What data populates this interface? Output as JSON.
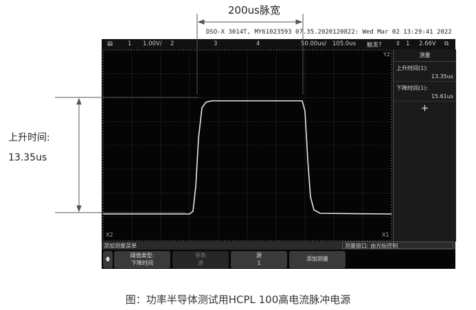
{
  "annotation": {
    "pulse_width": "200us脉宽",
    "rise_label": "上升时间:",
    "rise_value": "13.35us"
  },
  "caption": "图：功率半导体测试用HCPL 100高电流脉冲电源",
  "scope": {
    "header": "DSO-X 3014T, MY61023593  07.35.2020120822: Wed Mar 02 13:29:41 2022",
    "topbar": {
      "ch1": "1",
      "ch1_scale": "1.00V/",
      "ch2": "2",
      "ch3": "3",
      "ch4": "4",
      "timebase": "50.00us/",
      "delay": "105.0us",
      "trigger": "触发?",
      "trig_src": "1",
      "trig_level": "2.66V"
    },
    "panel": {
      "title": "测量",
      "rise_label": "上升时间(1):",
      "rise_value": "13.35us",
      "fall_label": "下降时间(1):",
      "fall_value": "15.61us",
      "add": "+"
    },
    "markers": {
      "x1": "X1",
      "x2": "X2",
      "y2": "Y2"
    },
    "menu": {
      "title": "添加测量菜单",
      "window": "测量窗口: 由光标控制"
    },
    "buttons": [
      {
        "line1": "阈值类型:",
        "line2": "下降时间"
      },
      {
        "line1": "参数",
        "line2": "源"
      },
      {
        "line1": "源",
        "line2": "1"
      },
      {
        "line1": "添加测量",
        "line2": ""
      }
    ]
  },
  "colors": {
    "trace": "#e8e8e8",
    "screen": "#050505"
  }
}
